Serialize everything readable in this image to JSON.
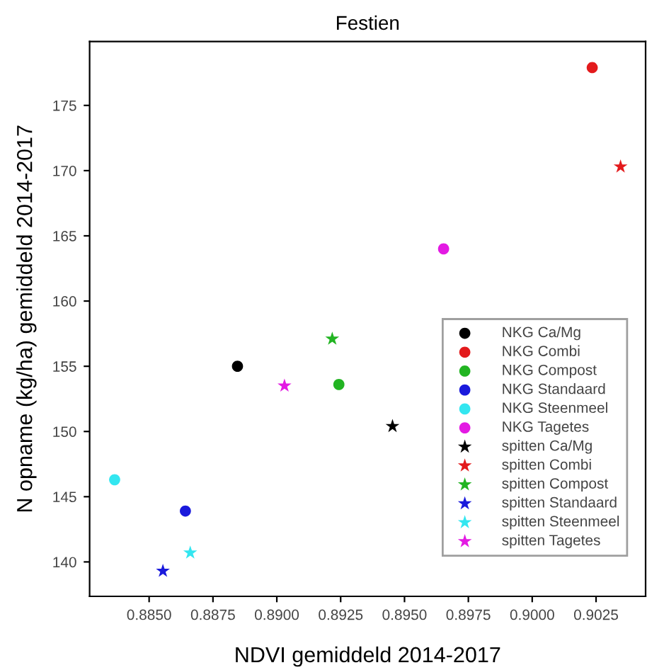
{
  "chart_data": {
    "type": "scatter",
    "title": "Festien",
    "xlabel": "NDVI gemiddeld 2014-2017",
    "ylabel": "N opname (kg/ha) gemiddeld 2014-2017",
    "xlim": [
      0.88267,
      0.90444
    ],
    "ylim": [
      137.36,
      179.9
    ],
    "xticks": [
      {
        "value": 0.885,
        "label": "0.8850"
      },
      {
        "value": 0.8875,
        "label": "0.8875"
      },
      {
        "value": 0.89,
        "label": "0.8900"
      },
      {
        "value": 0.8925,
        "label": "0.8925"
      },
      {
        "value": 0.895,
        "label": "0.8950"
      },
      {
        "value": 0.8975,
        "label": "0.8975"
      },
      {
        "value": 0.9,
        "label": "0.9000"
      },
      {
        "value": 0.9025,
        "label": "0.9025"
      }
    ],
    "yticks": [
      140,
      145,
      150,
      155,
      160,
      165,
      170,
      175
    ],
    "grid": false,
    "legend": "lower right",
    "series": [
      {
        "name": "NKG Ca/Mg",
        "color": "#000000",
        "marker": "circle",
        "x": [
          0.88846
        ],
        "values": [
          155.0
        ]
      },
      {
        "name": "NKG Combi",
        "color": "#e31a1c",
        "marker": "circle",
        "x": [
          0.90235
        ],
        "values": [
          177.9
        ]
      },
      {
        "name": "NKG Compost",
        "color": "#22b422",
        "marker": "circle",
        "x": [
          0.89243
        ],
        "values": [
          153.6
        ]
      },
      {
        "name": "NKG Standaard",
        "color": "#1a1adc",
        "marker": "circle",
        "x": [
          0.88642
        ],
        "values": [
          143.9
        ]
      },
      {
        "name": "NKG Steenmeel",
        "color": "#33e6f0",
        "marker": "circle",
        "x": [
          0.88365
        ],
        "values": [
          146.3
        ]
      },
      {
        "name": "NKG Tagetes",
        "color": "#e31ae3",
        "marker": "circle",
        "x": [
          0.89653
        ],
        "values": [
          164.0
        ]
      },
      {
        "name": "spitten Ca/Mg",
        "color": "#000000",
        "marker": "star",
        "x": [
          0.89453
        ],
        "values": [
          150.4
        ]
      },
      {
        "name": "spitten Combi",
        "color": "#e31a1c",
        "marker": "star",
        "x": [
          0.90346
        ],
        "values": [
          170.3
        ]
      },
      {
        "name": "spitten Compost",
        "color": "#22b422",
        "marker": "star",
        "x": [
          0.89217
        ],
        "values": [
          157.1
        ]
      },
      {
        "name": "spitten Standaard",
        "color": "#1a1adc",
        "marker": "star",
        "x": [
          0.88554
        ],
        "values": [
          139.3
        ]
      },
      {
        "name": "spitten Steenmeel",
        "color": "#33e6f0",
        "marker": "star",
        "x": [
          0.88661
        ],
        "values": [
          140.7
        ]
      },
      {
        "name": "spitten Tagetes",
        "color": "#e31ae3",
        "marker": "star",
        "x": [
          0.8903
        ],
        "values": [
          153.5
        ]
      }
    ]
  }
}
